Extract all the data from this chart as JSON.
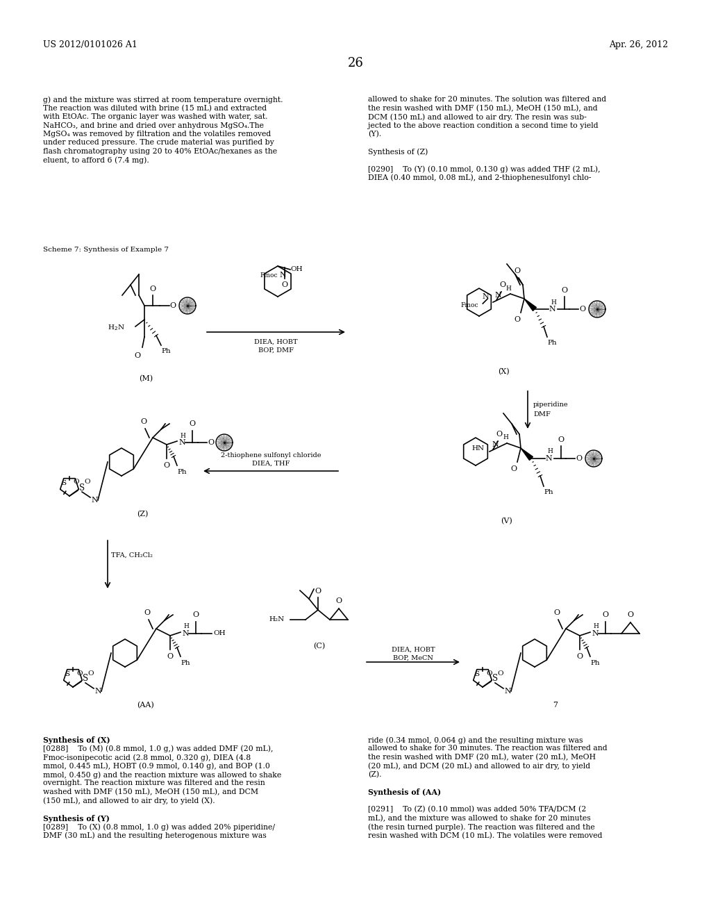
{
  "page_header_left": "US 2012/0101026 A1",
  "page_header_right": "Apr. 26, 2012",
  "page_number": "26",
  "background_color": "#ffffff",
  "text_color": "#000000",
  "scheme_label": "Scheme 7: Synthesis of Example 7",
  "left_col_text_lines": [
    "g) and the mixture was stirred at room temperature overnight.",
    "The reaction was diluted with brine (15 mL) and extracted",
    "with EtOAc. The organic layer was washed with water, sat.",
    "NaHCO₃, and brine and dried over anhydrous MgSO₄.The",
    "MgSO₄ was removed by filtration and the volatiles removed",
    "under reduced pressure. The crude material was purified by",
    "flash chromatography using 20 to 40% EtOAc/hexanes as the",
    "eluent, to afford 6 (7.4 mg)."
  ],
  "right_col_text_lines": [
    "allowed to shake for 20 minutes. The solution was filtered and",
    "the resin washed with DMF (150 mL), MeOH (150 mL), and",
    "DCM (150 mL) and allowed to air dry. The resin was sub-",
    "jected to the above reaction condition a second time to yield",
    "(Y).",
    "",
    "Synthesis of (Z)",
    "",
    "[0290]    To (Y) (0.10 mmol, 0.130 g) was added THF (2 mL),",
    "DIEA (0.40 mmol, 0.08 mL), and 2-thiophenesulfonyl chlo-"
  ],
  "bottom_left_lines": [
    "Synthesis of (X)",
    "[0288]    To (M) (0.8 mmol, 1.0 g,) was added DMF (20 mL),",
    "Fmoc-isonipecotic acid (2.8 mmol, 0.320 g), DIEA (4.8",
    "mmol, 0.445 mL), HOBT (0.9 mmol, 0.140 g), and BOP (1.0",
    "mmol, 0.450 g) and the reaction mixture was allowed to shake",
    "overnight. The reaction mixture was filtered and the resin",
    "washed with DMF (150 mL), MeOH (150 mL), and DCM",
    "(150 mL), and allowed to air dry, to yield (X).",
    "",
    "Synthesis of (Y)",
    "[0289]    To (X) (0.8 mmol, 1.0 g) was added 20% piperidine/",
    "DMF (30 mL) and the resulting heterogenous mixture was"
  ],
  "bottom_right_lines": [
    "ride (0.34 mmol, 0.064 g) and the resulting mixture was",
    "allowed to shake for 30 minutes. The reaction was filtered and",
    "the resin washed with DMF (20 mL), water (20 mL), MeOH",
    "(20 mL), and DCM (20 mL) and allowed to air dry, to yield",
    "(Z).",
    "",
    "Synthesis of (AA)",
    "",
    "[0291]    To (Z) (0.10 mmol) was added 50% TFA/DCM (2",
    "mL), and the mixture was allowed to shake for 20 minutes",
    "(the resin turned purple). The reaction was filtered and the",
    "resin washed with DCM (10 mL). The volatiles were removed"
  ]
}
